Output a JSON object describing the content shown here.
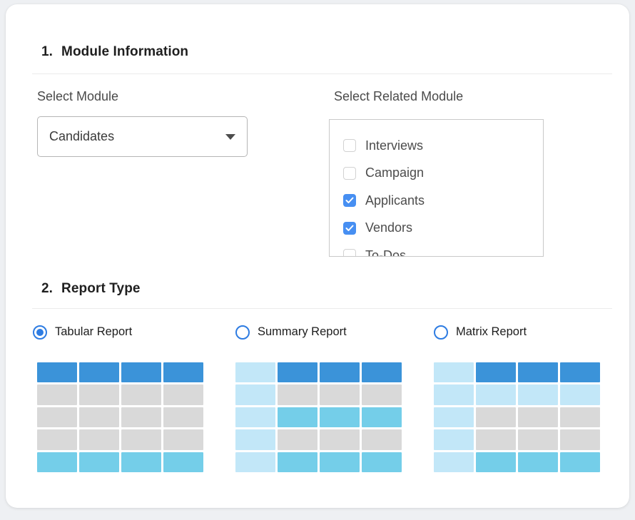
{
  "page": {
    "background": "#eef0f3",
    "card_background": "#ffffff"
  },
  "sections": {
    "module_information": {
      "number": "1.",
      "title": "Module Information"
    },
    "report_type": {
      "number": "2.",
      "title": "Report Type"
    }
  },
  "module_form": {
    "select_module": {
      "label": "Select Module",
      "value": "Candidates"
    },
    "select_related_module": {
      "label": "Select Related Module",
      "options": [
        {
          "label": "Interviews",
          "checked": false
        },
        {
          "label": "Campaign",
          "checked": false
        },
        {
          "label": "Applicants",
          "checked": true
        },
        {
          "label": "Vendors",
          "checked": true
        },
        {
          "label": "To-Dos",
          "checked": false
        }
      ]
    }
  },
  "report_type_form": {
    "options": [
      {
        "label": "Tabular Report",
        "selected": true,
        "preview_rows": [
          "hhhh",
          "gggg",
          "gggg",
          "gggg",
          "aaaa"
        ]
      },
      {
        "label": "Summary Report",
        "selected": false,
        "preview_rows": [
          "lhhh",
          "lggg",
          "laaa",
          "lggg",
          "laaa"
        ]
      },
      {
        "label": "Matrix Report",
        "selected": false,
        "preview_rows": [
          "lhhh",
          "llll",
          "lggg",
          "lggg",
          "laaa"
        ]
      }
    ],
    "preview_cell_colors": {
      "h": "#3B93D9",
      "g": "#D9D9D9",
      "a": "#74CEE9",
      "l": "#C2E7F8"
    }
  },
  "icons": {
    "dropdown_caret": "caret-down-icon",
    "checkbox_check": "check-icon"
  },
  "colors": {
    "radio_blue": "#2e7ce2",
    "checkbox_blue": "#478ff2",
    "divider": "#ebebeb"
  }
}
